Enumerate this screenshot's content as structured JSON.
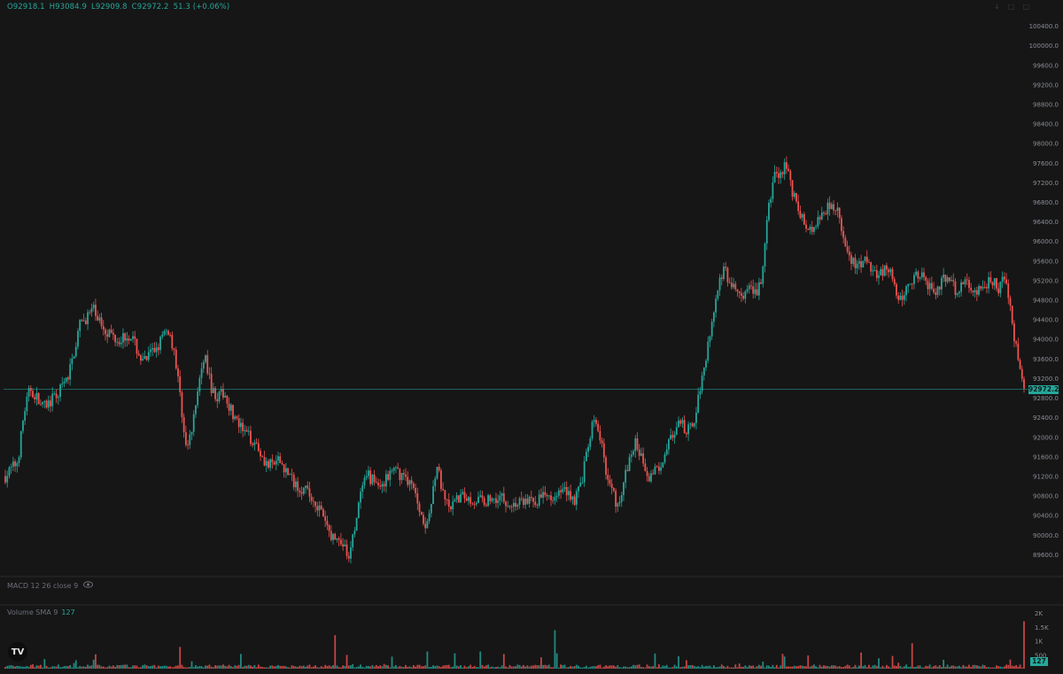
{
  "ohlc": {
    "open": "O92918.1",
    "high": "H93084.9",
    "low": "L92909.8",
    "close": "C92972.2",
    "change": "51.3 (+0.06%)"
  },
  "window_controls": [
    "↓",
    "□",
    "□"
  ],
  "macd_label": "MACD 12 26 close 9",
  "volume_label": "Volume SMA 9",
  "volume_value": "127",
  "logo_text": "TV",
  "colors": {
    "background": "#161616",
    "up": "#26a69a",
    "down": "#ef5350",
    "grid": "#232323",
    "axis_text": "#8a8e98",
    "price_line": "#26a69a"
  },
  "chart_data": {
    "type": "candlestick",
    "y_axis": {
      "ticks": [
        100400,
        100000,
        99600,
        99200,
        98800,
        98400,
        98000,
        97600,
        97200,
        96800,
        96400,
        96000,
        95600,
        95200,
        94800,
        94400,
        94000,
        93600,
        93200,
        92800,
        92400,
        92000,
        91600,
        91200,
        90800,
        90400,
        90000,
        89600
      ],
      "tick_labels": [
        "100400.0",
        "100000.0",
        "99600.0",
        "99200.0",
        "98800.0",
        "98400.0",
        "98000.0",
        "97600.0",
        "97200.0",
        "96800.0",
        "96400.0",
        "96000.0",
        "95600.0",
        "95200.0",
        "94800.0",
        "94400.0",
        "94000.0",
        "93600.0",
        "93200.0",
        "92800.0",
        "92400.0",
        "92000.0",
        "91600.0",
        "91200.0",
        "90800.0",
        "90400.0",
        "90000.0",
        "89600.0"
      ],
      "range": [
        89200,
        100600
      ]
    },
    "last_price": 92972.2,
    "last_price_label": "92972.2",
    "price_path": [
      [
        0,
        91200
      ],
      [
        2,
        91500
      ],
      [
        3,
        92500
      ],
      [
        4,
        93000
      ],
      [
        6,
        92600
      ],
      [
        8,
        92800
      ],
      [
        10,
        93200
      ],
      [
        12,
        94300
      ],
      [
        14,
        94600
      ],
      [
        16,
        94200
      ],
      [
        18,
        94000
      ],
      [
        20,
        94100
      ],
      [
        22,
        93500
      ],
      [
        24,
        93800
      ],
      [
        26,
        94200
      ],
      [
        27,
        93800
      ],
      [
        28,
        92800
      ],
      [
        29,
        91700
      ],
      [
        30,
        92200
      ],
      [
        31,
        93200
      ],
      [
        32,
        93600
      ],
      [
        33,
        93000
      ],
      [
        34,
        92800
      ],
      [
        35,
        92900
      ],
      [
        37,
        92300
      ],
      [
        38,
        92100
      ],
      [
        40,
        91900
      ],
      [
        42,
        91400
      ],
      [
        44,
        91500
      ],
      [
        46,
        91100
      ],
      [
        48,
        90900
      ],
      [
        50,
        90600
      ],
      [
        52,
        90000
      ],
      [
        54,
        89800
      ],
      [
        55,
        89500
      ],
      [
        56,
        90200
      ],
      [
        57,
        90900
      ],
      [
        58,
        91200
      ],
      [
        60,
        91000
      ],
      [
        62,
        91300
      ],
      [
        64,
        91200
      ],
      [
        65,
        91000
      ],
      [
        66,
        90700
      ],
      [
        67,
        90200
      ],
      [
        68,
        90500
      ],
      [
        69,
        91500
      ],
      [
        70,
        90800
      ],
      [
        71,
        90500
      ],
      [
        73,
        90800
      ],
      [
        75,
        90700
      ],
      [
        77,
        90700
      ],
      [
        79,
        90800
      ],
      [
        81,
        90600
      ],
      [
        83,
        90700
      ],
      [
        85,
        90700
      ],
      [
        87,
        90800
      ],
      [
        89,
        90900
      ],
      [
        90,
        90900
      ],
      [
        91,
        90700
      ],
      [
        92,
        91000
      ],
      [
        93,
        91600
      ],
      [
        94,
        92300
      ],
      [
        95,
        92100
      ],
      [
        96,
        91400
      ],
      [
        97,
        90900
      ],
      [
        98,
        90600
      ],
      [
        99,
        91100
      ],
      [
        100,
        91600
      ],
      [
        101,
        91900
      ],
      [
        102,
        91500
      ],
      [
        103,
        91200
      ],
      [
        104,
        91300
      ],
      [
        105,
        91500
      ],
      [
        106,
        91900
      ],
      [
        107,
        92000
      ],
      [
        108,
        92300
      ],
      [
        109,
        92100
      ],
      [
        110,
        92200
      ],
      [
        111,
        92900
      ],
      [
        112,
        93600
      ],
      [
        113,
        94300
      ],
      [
        114,
        95100
      ],
      [
        115,
        95400
      ],
      [
        116,
        95100
      ],
      [
        117,
        95000
      ],
      [
        118,
        94800
      ],
      [
        119,
        95000
      ],
      [
        120,
        94900
      ],
      [
        121,
        95200
      ],
      [
        122,
        96500
      ],
      [
        123,
        97400
      ],
      [
        124,
        97300
      ],
      [
        125,
        97600
      ],
      [
        126,
        97000
      ],
      [
        127,
        96600
      ],
      [
        128,
        96300
      ],
      [
        129,
        96200
      ],
      [
        130,
        96500
      ],
      [
        131,
        96600
      ],
      [
        132,
        96800
      ],
      [
        133,
        96700
      ],
      [
        134,
        96100
      ],
      [
        135,
        95600
      ],
      [
        136,
        95500
      ],
      [
        137,
        95500
      ],
      [
        138,
        95600
      ],
      [
        139,
        95400
      ],
      [
        140,
        95300
      ],
      [
        141,
        95500
      ],
      [
        142,
        95200
      ],
      [
        143,
        94700
      ],
      [
        144,
        95000
      ],
      [
        145,
        95200
      ],
      [
        146,
        95300
      ],
      [
        147,
        95200
      ],
      [
        148,
        95100
      ],
      [
        149,
        95000
      ],
      [
        150,
        95200
      ],
      [
        151,
        95200
      ],
      [
        152,
        95000
      ],
      [
        153,
        95100
      ],
      [
        154,
        95100
      ],
      [
        155,
        95000
      ],
      [
        156,
        95000
      ],
      [
        157,
        95100
      ],
      [
        158,
        95200
      ],
      [
        159,
        95000
      ],
      [
        160,
        95300
      ],
      [
        161,
        94400
      ],
      [
        162,
        93600
      ],
      [
        163,
        92972
      ]
    ],
    "volume_axis": {
      "tick_labels": [
        "2K",
        "1.5K",
        "1K",
        "500"
      ],
      "ticks": [
        2000,
        1500,
        1000,
        500
      ],
      "range": [
        0,
        2000
      ]
    },
    "volume_last": 127
  }
}
